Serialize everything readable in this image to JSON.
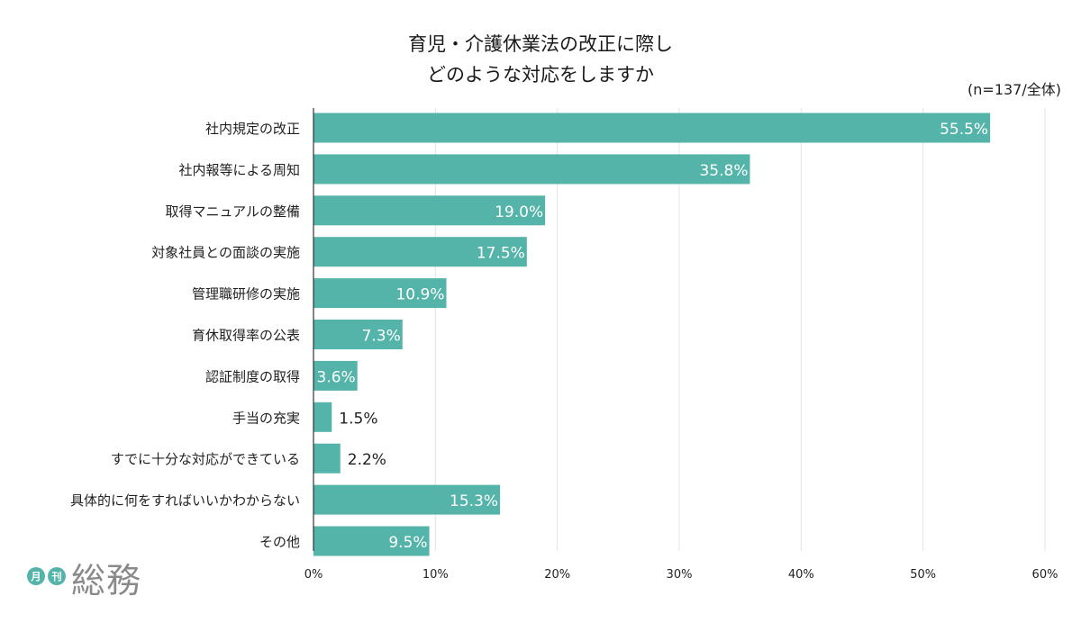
{
  "chart_data": {
    "type": "bar",
    "orientation": "horizontal",
    "title": [
      "育児・介護休業法の改正に際し",
      "どのような対応をしますか"
    ],
    "note": "(n=137/全体)",
    "categories": [
      "社内規定の改正",
      "社内報等による周知",
      "取得マニュアルの整備",
      "対象社員との面談の実施",
      "管理職研修の実施",
      "育休取得率の公表",
      "認証制度の取得",
      "手当の充実",
      "すでに十分な対応ができている",
      "具体的に何をすればいいかわからない",
      "その他"
    ],
    "values": [
      55.5,
      35.8,
      19.0,
      17.5,
      10.9,
      7.3,
      3.6,
      1.5,
      2.2,
      15.3,
      9.5
    ],
    "value_labels": [
      "55.5%",
      "35.8%",
      "19.0%",
      "17.5%",
      "10.9%",
      "7.3%",
      "3.6%",
      "1.5%",
      "2.2%",
      "15.3%",
      "9.5%"
    ],
    "xlim": [
      0,
      60
    ],
    "x_ticks": [
      0,
      10,
      20,
      30,
      40,
      50,
      60
    ],
    "x_tick_labels": [
      "0%",
      "10%",
      "20%",
      "30%",
      "40%",
      "50%",
      "60%"
    ],
    "grid": true,
    "bar_color": "#55b4a9",
    "xlabel": "",
    "ylabel": ""
  },
  "logo": {
    "circle_1": "月",
    "circle_2": "刊",
    "word": "総務",
    "color": "#55b4a9"
  }
}
